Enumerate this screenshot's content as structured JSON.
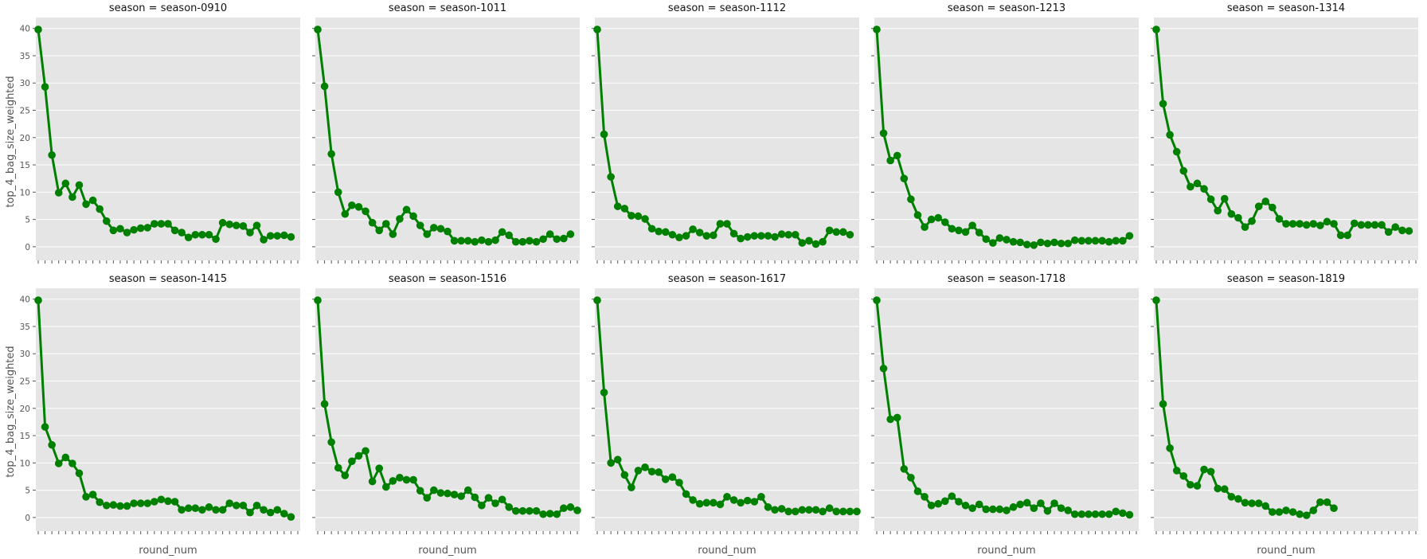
{
  "figure": {
    "ylabel": "top_4_bag_size_weighted",
    "xlabel": "round_num"
  },
  "chart_data": {
    "type": "line",
    "title": "",
    "xlabel": "round_num",
    "ylabel": "top_4_bag_size_weighted",
    "ylim": [
      -2.5,
      42
    ],
    "yticks": [
      0,
      5,
      10,
      15,
      20,
      25,
      30,
      35,
      40
    ],
    "grid": true,
    "markers": true,
    "color": "#008000",
    "x_tick_labels_visible": false,
    "facet_column": "season",
    "facets": [
      {
        "title": "season = season-0910",
        "values": [
          39.8,
          29.3,
          16.8,
          9.9,
          11.6,
          9.1,
          11.3,
          7.8,
          8.5,
          6.9,
          4.7,
          3.0,
          3.3,
          2.6,
          3.1,
          3.4,
          3.5,
          4.2,
          4.2,
          4.2,
          3.0,
          2.6,
          1.7,
          2.2,
          2.2,
          2.2,
          1.4,
          4.4,
          4.1,
          3.9,
          3.8,
          2.6,
          3.9,
          1.3,
          2.0,
          2.0,
          2.1,
          1.8
        ]
      },
      {
        "title": "season = season-1011",
        "values": [
          39.8,
          29.4,
          17.0,
          10.0,
          6.0,
          7.6,
          7.3,
          6.5,
          4.4,
          3.0,
          4.2,
          2.3,
          5.1,
          6.8,
          5.6,
          3.9,
          2.3,
          3.5,
          3.3,
          2.8,
          1.1,
          1.1,
          1.1,
          0.9,
          1.2,
          0.9,
          1.2,
          2.7,
          2.1,
          0.9,
          0.9,
          1.1,
          0.9,
          1.4,
          2.3,
          1.4,
          1.5,
          2.3
        ]
      },
      {
        "title": "season = season-1112",
        "values": [
          39.8,
          20.6,
          12.8,
          7.4,
          7.0,
          5.7,
          5.6,
          5.1,
          3.3,
          2.8,
          2.7,
          2.2,
          1.7,
          2.0,
          3.2,
          2.6,
          2.0,
          2.1,
          4.2,
          4.2,
          2.4,
          1.5,
          1.8,
          2.0,
          2.0,
          2.0,
          1.8,
          2.3,
          2.2,
          2.2,
          0.7,
          1.1,
          0.5,
          0.9,
          3.0,
          2.7,
          2.7,
          2.2
        ]
      },
      {
        "title": "season = season-1213",
        "values": [
          39.8,
          20.8,
          15.8,
          16.7,
          12.5,
          8.7,
          5.8,
          3.6,
          5.0,
          5.3,
          4.5,
          3.3,
          3.0,
          2.7,
          3.9,
          2.6,
          1.4,
          0.7,
          1.6,
          1.3,
          0.9,
          0.8,
          0.4,
          0.3,
          0.8,
          0.6,
          0.8,
          0.6,
          0.6,
          1.2,
          1.1,
          1.1,
          1.1,
          1.1,
          0.9,
          1.1,
          1.1,
          2.0
        ]
      },
      {
        "title": "season = season-1314",
        "values": [
          39.8,
          26.2,
          20.5,
          17.4,
          13.9,
          11.0,
          11.6,
          10.6,
          8.7,
          6.6,
          8.8,
          6.0,
          5.3,
          3.6,
          4.7,
          7.4,
          8.3,
          7.2,
          5.1,
          4.2,
          4.2,
          4.2,
          4.0,
          4.2,
          3.9,
          4.6,
          4.2,
          2.1,
          2.1,
          4.3,
          4.0,
          4.0,
          4.0,
          4.0,
          2.7,
          3.6,
          3.0,
          2.9
        ]
      },
      {
        "title": "season = season-1415",
        "values": [
          39.8,
          16.6,
          13.3,
          9.9,
          11.0,
          9.9,
          8.1,
          3.8,
          4.2,
          2.8,
          2.2,
          2.3,
          2.1,
          2.1,
          2.6,
          2.6,
          2.6,
          2.9,
          3.3,
          3.0,
          2.9,
          1.4,
          1.7,
          1.7,
          1.4,
          1.9,
          1.4,
          1.4,
          2.6,
          2.2,
          2.2,
          0.9,
          2.2,
          1.4,
          0.9,
          1.4,
          0.7,
          0.1
        ]
      },
      {
        "title": "season = season-1516",
        "values": [
          39.8,
          20.8,
          13.8,
          9.1,
          7.7,
          10.3,
          11.3,
          12.2,
          6.6,
          9.0,
          5.6,
          6.7,
          7.3,
          6.9,
          6.9,
          4.9,
          3.6,
          5.0,
          4.5,
          4.4,
          4.2,
          3.9,
          5.0,
          3.7,
          2.2,
          3.6,
          2.6,
          3.3,
          1.9,
          1.2,
          1.2,
          1.2,
          1.2,
          0.6,
          0.7,
          0.6,
          1.7,
          1.9,
          1.3
        ]
      },
      {
        "title": "season = season-1617",
        "values": [
          39.8,
          22.9,
          10.0,
          10.6,
          7.8,
          5.5,
          8.6,
          9.2,
          8.4,
          8.3,
          7.0,
          7.4,
          6.4,
          4.3,
          3.2,
          2.5,
          2.7,
          2.7,
          2.4,
          3.8,
          3.2,
          2.7,
          3.1,
          2.9,
          3.8,
          1.9,
          1.4,
          1.6,
          1.1,
          1.1,
          1.4,
          1.4,
          1.4,
          1.1,
          1.7,
          1.1,
          1.1,
          1.1,
          1.1
        ]
      },
      {
        "title": "season = season-1718",
        "values": [
          39.8,
          27.3,
          18.0,
          18.3,
          8.9,
          7.3,
          4.8,
          3.8,
          2.2,
          2.5,
          3.0,
          3.9,
          2.9,
          2.2,
          1.7,
          2.4,
          1.5,
          1.5,
          1.5,
          1.3,
          1.9,
          2.4,
          2.7,
          1.7,
          2.6,
          1.2,
          2.6,
          1.7,
          1.3,
          0.6,
          0.6,
          0.6,
          0.6,
          0.6,
          0.6,
          1.1,
          0.8,
          0.5
        ]
      },
      {
        "title": "season = season-1819",
        "values": [
          39.8,
          20.8,
          12.7,
          8.6,
          7.6,
          6.0,
          5.8,
          8.8,
          8.4,
          5.3,
          5.2,
          3.8,
          3.4,
          2.7,
          2.6,
          2.6,
          2.1,
          1.0,
          1.0,
          1.3,
          1.0,
          0.6,
          0.4,
          1.3,
          2.8,
          2.8,
          1.7
        ]
      }
    ]
  }
}
